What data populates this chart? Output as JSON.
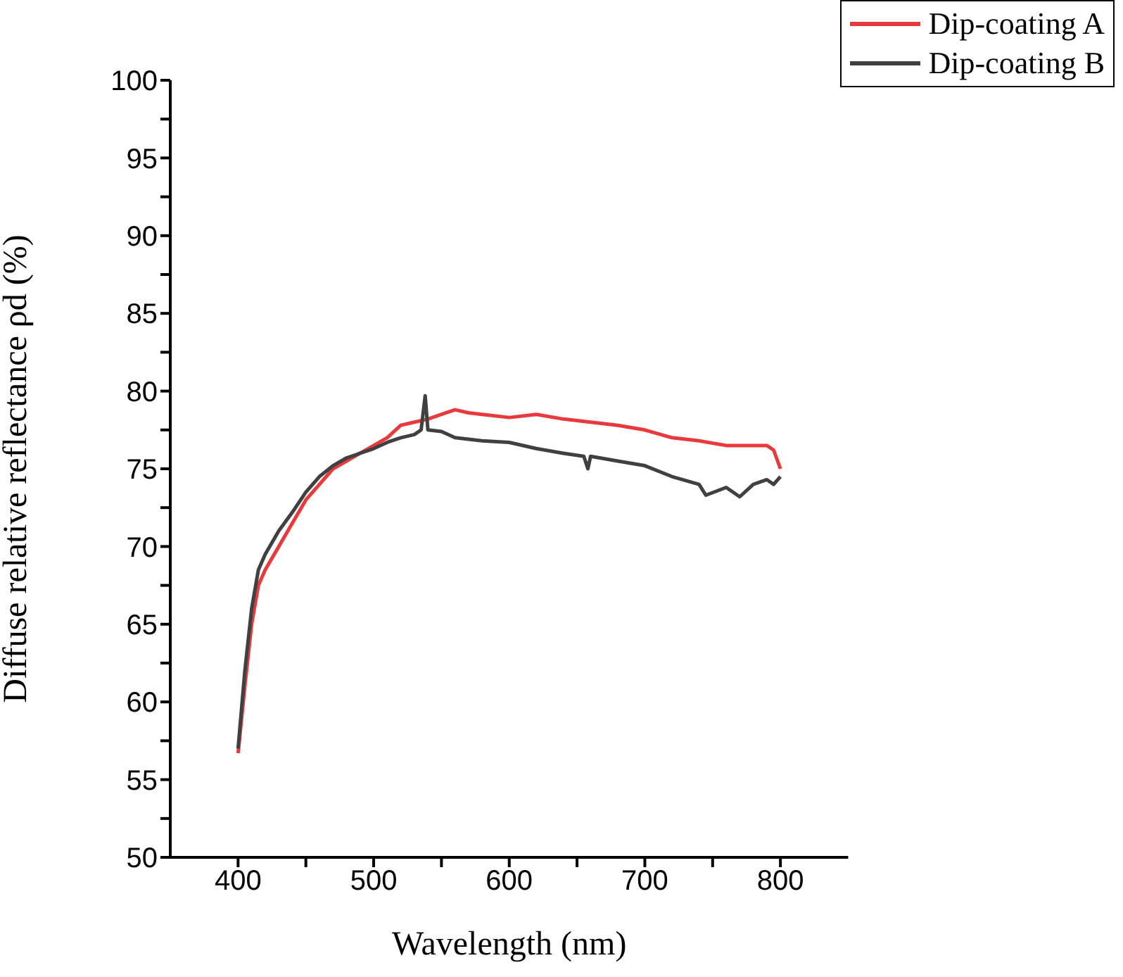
{
  "chart_data": {
    "type": "line",
    "xlabel": "Wavelength (nm)",
    "ylabel": "Diffuse relative reflectance ρd (%)",
    "xlim": [
      350,
      850
    ],
    "xticks": [
      400,
      {
        "value": 450,
        "label": null
      },
      500,
      {
        "value": 550,
        "label": null
      },
      600,
      {
        "value": 650,
        "label": null
      },
      700,
      {
        "value": 750,
        "label": null
      },
      800
    ],
    "ylim": [
      50,
      100
    ],
    "yticks": [
      50,
      {
        "value": 52.5,
        "label": null
      },
      55,
      {
        "value": 57.5,
        "label": null
      },
      60,
      {
        "value": 62.5,
        "label": null
      },
      65,
      {
        "value": 67.5,
        "label": null
      },
      70,
      {
        "value": 72.5,
        "label": null
      },
      75,
      {
        "value": 77.5,
        "label": null
      },
      80,
      {
        "value": 82.5,
        "label": null
      },
      85,
      {
        "value": 87.5,
        "label": null
      },
      90,
      {
        "value": 92.5,
        "label": null
      },
      95,
      {
        "value": 97.5,
        "label": null
      },
      100
    ],
    "grid": false,
    "legend": "top right",
    "line_style": "solid",
    "marker": "none",
    "series": [
      {
        "name": "Dip-coating A",
        "color": "#e8393c",
        "x": [
          400,
          405,
          410,
          415,
          420,
          430,
          440,
          450,
          460,
          470,
          480,
          490,
          500,
          510,
          520,
          530,
          540,
          550,
          560,
          570,
          580,
          600,
          620,
          640,
          660,
          680,
          700,
          720,
          740,
          760,
          780,
          790,
          795,
          800
        ],
        "values": [
          56.7,
          61,
          65,
          67.5,
          68.5,
          70,
          71.5,
          73,
          74,
          75,
          75.5,
          76,
          76.5,
          77,
          77.8,
          78,
          78.2,
          78.5,
          78.8,
          78.6,
          78.5,
          78.3,
          78.5,
          78.2,
          78,
          77.8,
          77.5,
          77,
          76.8,
          76.5,
          76.5,
          76.5,
          76.2,
          75
        ]
      },
      {
        "name": "Dip-coating B",
        "color": "#404040",
        "x": [
          400,
          405,
          410,
          415,
          420,
          430,
          440,
          450,
          460,
          470,
          480,
          490,
          500,
          510,
          520,
          530,
          535,
          538,
          540,
          550,
          560,
          580,
          600,
          620,
          640,
          655,
          658,
          660,
          680,
          700,
          720,
          740,
          745,
          760,
          770,
          780,
          790,
          795,
          800
        ],
        "values": [
          57,
          62,
          66,
          68.5,
          69.5,
          71,
          72.2,
          73.5,
          74.5,
          75.2,
          75.7,
          76,
          76.3,
          76.7,
          77,
          77.2,
          77.5,
          79.7,
          77.5,
          77.4,
          77,
          76.8,
          76.7,
          76.3,
          76,
          75.8,
          75,
          75.8,
          75.5,
          75.2,
          74.5,
          74,
          73.3,
          73.8,
          73.2,
          74,
          74.3,
          74,
          74.5
        ]
      }
    ]
  }
}
